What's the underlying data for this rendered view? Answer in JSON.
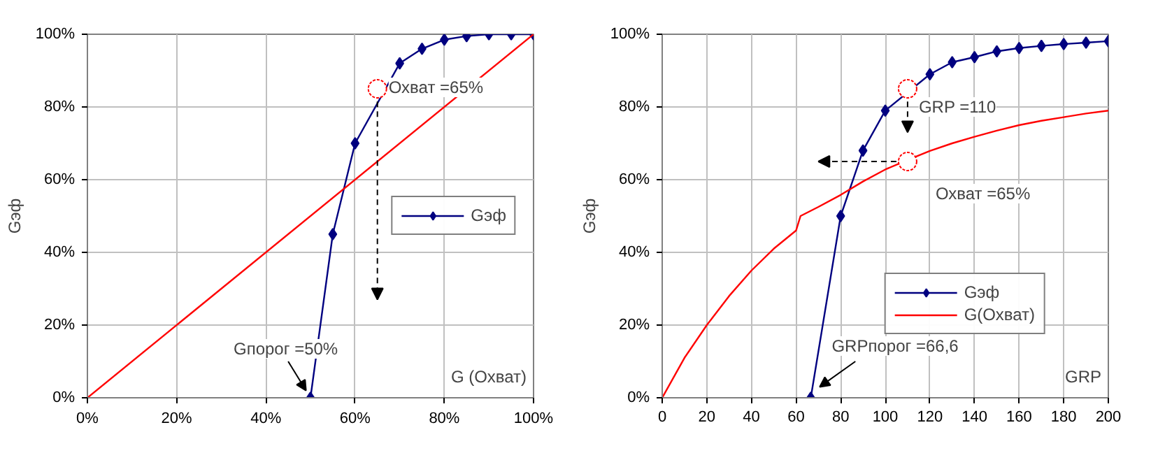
{
  "chart_data": [
    {
      "type": "line",
      "ylabel": "Gэф",
      "xlabel": "G (Охват)",
      "xlim": [
        0,
        100
      ],
      "ylim": [
        0,
        100
      ],
      "xticks": [
        {
          "value": 0,
          "label": "0%"
        },
        {
          "value": 20,
          "label": "20%"
        },
        {
          "value": 40,
          "label": "40%"
        },
        {
          "value": 60,
          "label": "60%"
        },
        {
          "value": 80,
          "label": "80%"
        },
        {
          "value": 100,
          "label": "100%"
        }
      ],
      "yticks": [
        {
          "value": 0,
          "label": "0%"
        },
        {
          "value": 20,
          "label": "20%"
        },
        {
          "value": 40,
          "label": "40%"
        },
        {
          "value": 60,
          "label": "60%"
        },
        {
          "value": 80,
          "label": "80%"
        },
        {
          "value": 100,
          "label": "100%"
        }
      ],
      "grid": true,
      "legend": "right",
      "series": [
        {
          "name": "Gэф",
          "color": "#000080",
          "marker": "diamond",
          "x": [
            50,
            55,
            60,
            70,
            75,
            80,
            85,
            90,
            95,
            100
          ],
          "values": [
            0,
            45,
            70,
            92,
            96,
            98.5,
            99.5,
            100,
            100,
            100
          ]
        },
        {
          "color": "#ff0000",
          "marker": "none",
          "x": [
            0,
            100
          ],
          "values": [
            0,
            100
          ]
        }
      ],
      "annotations": [
        {
          "text": "Охват =65%",
          "x": 65,
          "y": 85
        },
        {
          "text": "Gпорог =50%",
          "x": 50,
          "y": 0
        }
      ]
    },
    {
      "type": "line",
      "ylabel": "Gэф",
      "xlabel": "GRP",
      "xlim": [
        0,
        200
      ],
      "ylim": [
        0,
        100
      ],
      "xticks": [
        0,
        20,
        40,
        60,
        80,
        100,
        120,
        140,
        160,
        180,
        200
      ],
      "yticks": [
        {
          "value": 0,
          "label": "0%"
        },
        {
          "value": 20,
          "label": "20%"
        },
        {
          "value": 40,
          "label": "40%"
        },
        {
          "value": 60,
          "label": "60%"
        },
        {
          "value": 80,
          "label": "80%"
        },
        {
          "value": 100,
          "label": "100%"
        }
      ],
      "grid": true,
      "legend": "bottom right",
      "series": [
        {
          "name": "Gэф",
          "color": "#000080",
          "marker": "diamond",
          "x": [
            66.6,
            80,
            90,
            100,
            120,
            130,
            140,
            150,
            160,
            170,
            180,
            190,
            200
          ],
          "values": [
            0,
            50,
            68,
            79,
            89,
            92.3,
            93.7,
            95.3,
            96.2,
            96.8,
            97.3,
            97.7,
            98.1
          ]
        },
        {
          "name": "G(Охват)",
          "color": "#ff0000",
          "marker": "none",
          "x": [
            0,
            10,
            20,
            30,
            40,
            50,
            60,
            62,
            70,
            80,
            90,
            100,
            110,
            120,
            130,
            140,
            150,
            160,
            170,
            180,
            190,
            200
          ],
          "values": [
            0,
            11,
            20,
            28,
            35,
            41,
            46,
            50,
            52.5,
            55.8,
            59.5,
            62.8,
            65.4,
            67.9,
            70,
            71.8,
            73.5,
            75,
            76.2,
            77.2,
            78.2,
            79
          ]
        }
      ],
      "annotations": [
        {
          "text": "GRP =110",
          "x": 110,
          "y": 85
        },
        {
          "text": "Охват =65%",
          "x": 110,
          "y": 65
        },
        {
          "text": "GRPпорог =66,6",
          "x": 66.6,
          "y": 0
        }
      ]
    }
  ]
}
